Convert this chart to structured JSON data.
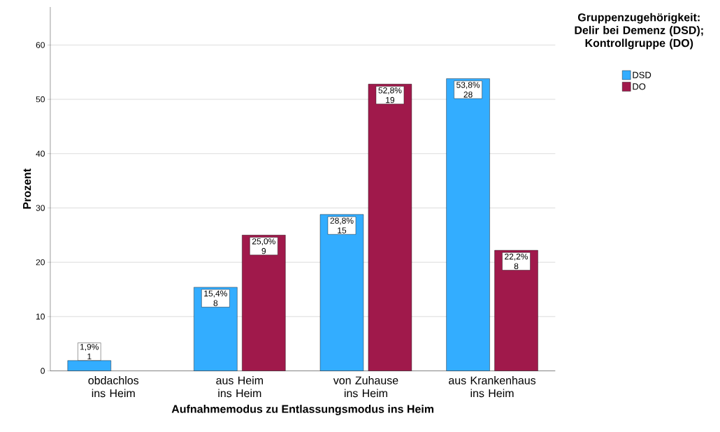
{
  "chart_data": {
    "type": "bar",
    "xlabel": "Aufnahmemodus zu Entlassungsmodus ins Heim",
    "ylabel": "Prozent",
    "legend_title": "Gruppenzugehörigkeit: Delir bei Demenz (DSD); Kontrollgruppe (DO)",
    "categories": [
      "obdachlos ins Heim",
      "aus Heim ins Heim",
      "von Zuhause ins Heim",
      "aus Krankenhaus ins Heim"
    ],
    "series": [
      {
        "name": "DSD",
        "color": "#33adff",
        "values": [
          1.9,
          15.4,
          28.8,
          53.8
        ],
        "value_labels": [
          "1,9% 1",
          "15,4% 8",
          "28,8% 15",
          "53,8% 28"
        ]
      },
      {
        "name": "DO",
        "color": "#a0194b",
        "values": [
          null,
          25.0,
          52.8,
          22.2
        ],
        "value_labels": [
          null,
          "25,0% 9",
          "52,8% 19",
          "22,2% 8"
        ]
      }
    ],
    "ylim": [
      0,
      67
    ],
    "yticks": [
      0,
      10,
      20,
      30,
      40,
      50,
      60
    ],
    "grid": "y",
    "legend": "top right"
  }
}
